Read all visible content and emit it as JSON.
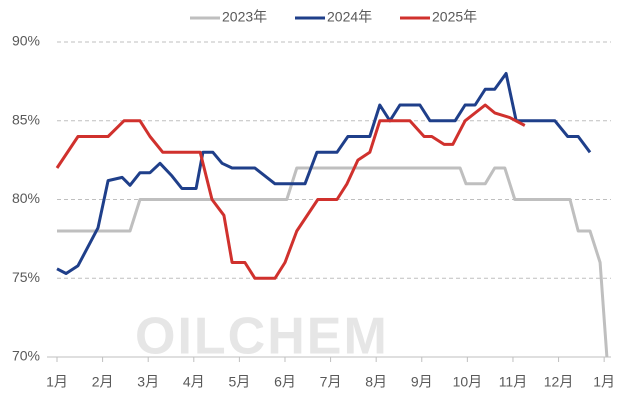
{
  "chart_data": {
    "type": "line",
    "watermark": "OILCHEM",
    "xlim": [
      0,
      12.15
    ],
    "xticks": [
      {
        "value": 0,
        "label": "1月"
      },
      {
        "value": 1,
        "label": "2月"
      },
      {
        "value": 2,
        "label": "3月"
      },
      {
        "value": 3,
        "label": "4月"
      },
      {
        "value": 4,
        "label": "5月"
      },
      {
        "value": 5,
        "label": "6月"
      },
      {
        "value": 6,
        "label": "7月"
      },
      {
        "value": 7,
        "label": "8月"
      },
      {
        "value": 8,
        "label": "9月"
      },
      {
        "value": 9,
        "label": "10月"
      },
      {
        "value": 10,
        "label": "11月"
      },
      {
        "value": 11,
        "label": "12月"
      },
      {
        "value": 12,
        "label": "1月"
      }
    ],
    "ylim": [
      70,
      90
    ],
    "yticks": [
      {
        "value": 70,
        "label": "70%"
      },
      {
        "value": 75,
        "label": "75%"
      },
      {
        "value": 80,
        "label": "80%"
      },
      {
        "value": 85,
        "label": "85%"
      },
      {
        "value": 90,
        "label": "90%"
      }
    ],
    "grid": true,
    "legend": "top",
    "series": [
      {
        "name": "2023年",
        "color": "#bfbfbf",
        "x": [
          0,
          1.6,
          1.82,
          5.04,
          5.26,
          8.84,
          8.97,
          9.39,
          9.6,
          9.82,
          10.04,
          11.25,
          11.43,
          11.69,
          11.91,
          12.06
        ],
        "values": [
          78,
          78,
          80,
          80,
          82,
          82,
          81,
          81,
          82,
          82,
          80,
          80,
          78,
          78,
          76,
          70
        ]
      },
      {
        "name": "2024年",
        "color": "#1f3f8a",
        "x": [
          0,
          0.2,
          0.46,
          0.9,
          1.12,
          1.43,
          1.6,
          1.82,
          2.04,
          2.26,
          2.52,
          2.74,
          3.05,
          3.2,
          3.42,
          3.62,
          3.84,
          4.34,
          4.78,
          5.44,
          5.7,
          6.14,
          6.38,
          6.86,
          7.08,
          7.3,
          7.52,
          7.96,
          8.18,
          8.73,
          8.95,
          9.17,
          9.39,
          9.6,
          9.85,
          10.07,
          10.92,
          11.2,
          11.43,
          11.69
        ],
        "values": [
          75.6,
          75.3,
          75.8,
          78.2,
          81.2,
          81.4,
          80.9,
          81.7,
          81.7,
          82.3,
          81.5,
          80.7,
          80.7,
          83,
          83,
          82.3,
          82,
          82,
          81,
          81,
          83,
          83,
          84,
          84,
          86,
          85,
          86,
          86,
          85,
          85,
          86,
          86,
          87,
          87,
          88,
          85,
          85,
          84,
          84,
          83
        ]
      },
      {
        "name": "2025年",
        "color": "#d0312d",
        "x": [
          0,
          0.46,
          1.12,
          1.47,
          1.82,
          2.04,
          2.32,
          2.92,
          3.14,
          3.4,
          3.66,
          3.84,
          4.12,
          4.34,
          4.78,
          5,
          5.26,
          5.72,
          6.14,
          6.36,
          6.6,
          6.86,
          7.08,
          7.74,
          8.05,
          8.22,
          8.49,
          8.68,
          8.95,
          9.39,
          9.6,
          9.93,
          10.26
        ],
        "values": [
          82,
          84,
          84,
          85,
          85,
          84,
          83,
          83,
          83,
          80,
          79,
          76,
          76,
          75,
          75,
          76,
          78,
          80,
          80,
          81,
          82.5,
          83,
          85,
          85,
          84,
          84,
          83.5,
          83.5,
          85,
          86,
          85.5,
          85.2,
          84.7
        ]
      }
    ]
  }
}
